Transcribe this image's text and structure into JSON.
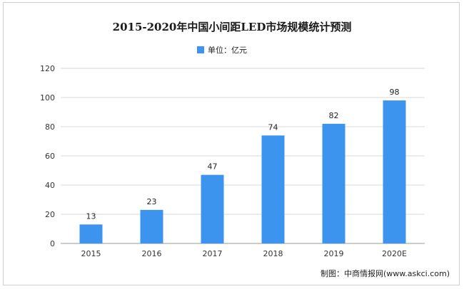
{
  "chart_data": {
    "type": "bar",
    "title": "2015-2020年中国小间距LED市场规模统计预测",
    "categories": [
      "2015",
      "2016",
      "2017",
      "2018",
      "2019",
      "2020E"
    ],
    "series": [
      {
        "name": "单位：亿元",
        "values": [
          13,
          23,
          47,
          74,
          82,
          98
        ]
      }
    ],
    "data_labels": [
      "13",
      "23",
      "47",
      "74",
      "82",
      "98"
    ],
    "ylim": [
      0,
      120
    ],
    "yticks": [
      0,
      20,
      40,
      60,
      80,
      100,
      120
    ],
    "ytick_labels": [
      "0",
      "20",
      "40",
      "60",
      "80",
      "100",
      "120"
    ],
    "grid": true,
    "legend": "top-center",
    "bar_color": "#3d94ef",
    "source": "制图：中商情报网(www.askci.com)"
  }
}
